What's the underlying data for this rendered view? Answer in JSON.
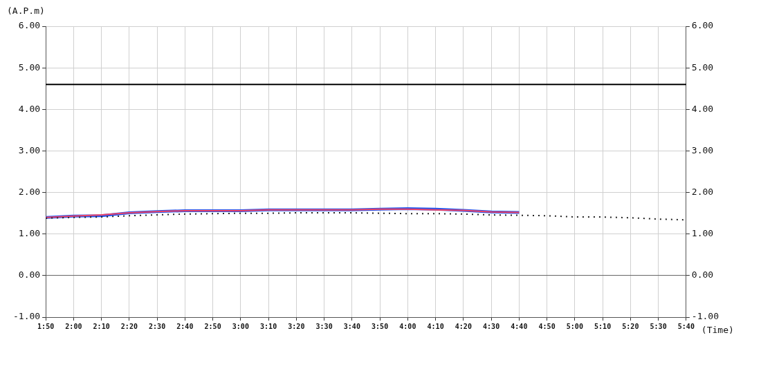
{
  "chart_data": {
    "type": "line",
    "xlabel": "(Time)",
    "ylabel": "(A.P.m)",
    "categories": [
      "1:50",
      "2:00",
      "2:10",
      "2:20",
      "2:30",
      "2:40",
      "2:50",
      "3:00",
      "3:10",
      "3:20",
      "3:30",
      "3:40",
      "3:50",
      "4:00",
      "4:10",
      "4:20",
      "4:30",
      "4:40",
      "4:50",
      "5:00",
      "5:10",
      "5:20",
      "5:30",
      "5:40"
    ],
    "series": [
      {
        "color": "#2255ee",
        "line_style": "solid",
        "values": [
          1.4,
          1.43,
          1.44,
          1.51,
          1.54,
          1.56,
          1.56,
          1.56,
          1.58,
          1.58,
          1.58,
          1.58,
          1.6,
          1.61,
          1.6,
          1.57,
          1.53,
          1.52,
          null,
          null,
          null,
          null,
          null,
          null
        ]
      },
      {
        "color": "#ee4466",
        "line_style": "solid",
        "values": [
          1.4,
          1.43,
          1.46,
          1.51,
          1.54,
          1.56,
          1.56,
          1.56,
          1.58,
          1.58,
          1.58,
          1.58,
          1.6,
          1.6,
          1.58,
          1.57,
          1.53,
          1.52,
          null,
          null,
          null,
          null,
          null,
          null
        ]
      },
      {
        "color": "#222222",
        "line_style": "dotted",
        "values": [
          1.38,
          1.4,
          1.41,
          1.44,
          1.46,
          1.48,
          1.49,
          1.5,
          1.5,
          1.51,
          1.51,
          1.51,
          1.5,
          1.49,
          1.49,
          1.48,
          1.46,
          1.45,
          1.44,
          1.41,
          1.41,
          1.39,
          1.36,
          1.34
        ]
      }
    ],
    "ylim": [
      -1,
      6
    ],
    "yticks": [
      {
        "value": -1,
        "label": "-1.00"
      },
      {
        "value": 0,
        "label": "0.00"
      },
      {
        "value": 1,
        "label": "1.00"
      },
      {
        "value": 2,
        "label": "2.00"
      },
      {
        "value": 3,
        "label": "3.00"
      },
      {
        "value": 4,
        "label": "4.00"
      },
      {
        "value": 5,
        "label": "5.00"
      },
      {
        "value": 6,
        "label": "6.00"
      }
    ],
    "y2lim": [
      -1,
      6
    ],
    "y2ticks": [
      {
        "value": -1,
        "label": "-1.00"
      },
      {
        "value": 0,
        "label": "0.00"
      },
      {
        "value": 1,
        "label": "1.00"
      },
      {
        "value": 2,
        "label": "2.00"
      },
      {
        "value": 3,
        "label": "3.00"
      },
      {
        "value": 4,
        "label": "4.00"
      },
      {
        "value": 5,
        "label": "5.00"
      },
      {
        "value": 6,
        "label": "6.00"
      }
    ],
    "ref_lines": [
      {
        "axis": "y",
        "value": 4.6,
        "color": "#000000",
        "line_style": "solid"
      }
    ],
    "grid": true,
    "legend": false,
    "marker": "none"
  }
}
